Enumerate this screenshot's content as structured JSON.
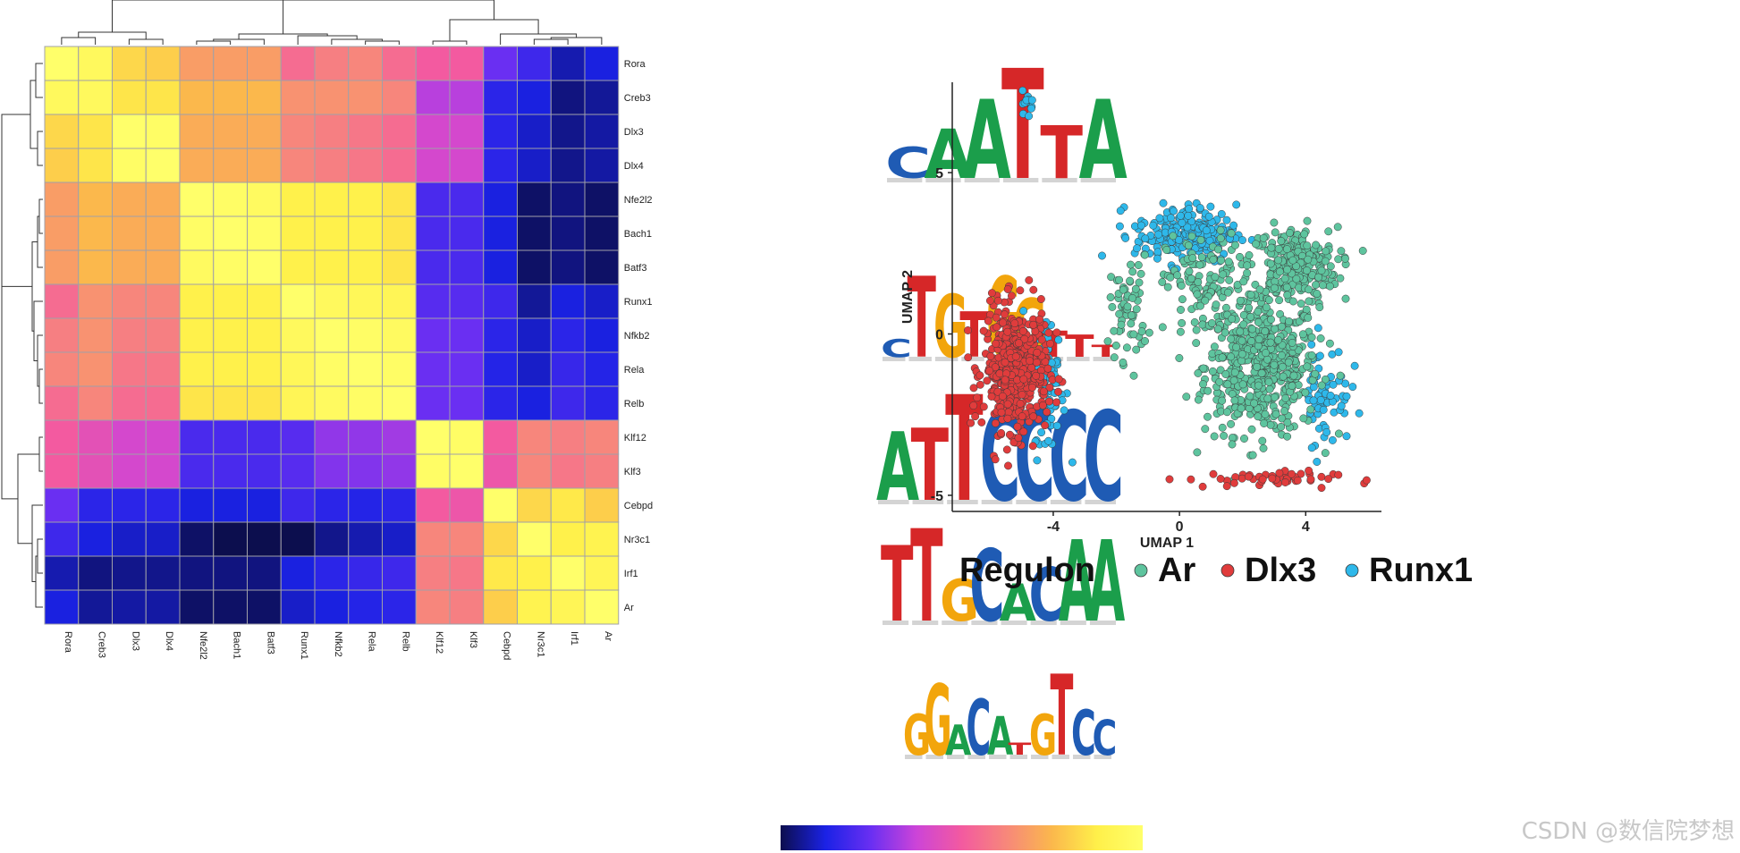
{
  "chart_data": [
    {
      "type": "heatmap",
      "title": "",
      "row_labels": [
        "Rora",
        "Creb3",
        "Dlx3",
        "Dlx4",
        "Nfe2l2",
        "Bach1",
        "Batf3",
        "Runx1",
        "Nfkb2",
        "Rela",
        "Relb",
        "Klf12",
        "Klf3",
        "Cebpd",
        "Nr3c1",
        "Irf1",
        "Ar"
      ],
      "col_labels": [
        "Rora",
        "Creb3",
        "Dlx3",
        "Dlx4",
        "Nfe2l2",
        "Bach1",
        "Batf3",
        "Runx1",
        "Nfkb2",
        "Rela",
        "Relb",
        "Klf12",
        "Klf3",
        "Cebpd",
        "Nr3c1",
        "Irf1",
        "Ar"
      ],
      "value_range": [
        0,
        1
      ],
      "values": [
        [
          1.0,
          0.95,
          0.82,
          0.8,
          0.68,
          0.68,
          0.68,
          0.55,
          0.6,
          0.62,
          0.55,
          0.5,
          0.5,
          0.25,
          0.18,
          0.08,
          0.12
        ],
        [
          0.95,
          0.95,
          0.85,
          0.85,
          0.75,
          0.75,
          0.75,
          0.65,
          0.65,
          0.65,
          0.62,
          0.35,
          0.35,
          0.15,
          0.12,
          0.04,
          0.06
        ],
        [
          0.82,
          0.85,
          1.0,
          0.98,
          0.72,
          0.72,
          0.72,
          0.62,
          0.6,
          0.58,
          0.55,
          0.4,
          0.4,
          0.15,
          0.1,
          0.05,
          0.07
        ],
        [
          0.8,
          0.85,
          0.98,
          1.0,
          0.72,
          0.72,
          0.72,
          0.62,
          0.6,
          0.58,
          0.55,
          0.4,
          0.4,
          0.15,
          0.1,
          0.05,
          0.07
        ],
        [
          0.68,
          0.75,
          0.72,
          0.72,
          1.0,
          0.98,
          0.96,
          0.88,
          0.88,
          0.88,
          0.85,
          0.2,
          0.2,
          0.12,
          0.02,
          0.04,
          0.02
        ],
        [
          0.68,
          0.75,
          0.72,
          0.72,
          0.98,
          1.0,
          0.98,
          0.88,
          0.88,
          0.88,
          0.85,
          0.2,
          0.2,
          0.12,
          0.02,
          0.04,
          0.02
        ],
        [
          0.68,
          0.75,
          0.72,
          0.72,
          0.96,
          0.98,
          1.0,
          0.88,
          0.88,
          0.88,
          0.85,
          0.2,
          0.2,
          0.12,
          0.02,
          0.04,
          0.02
        ],
        [
          0.55,
          0.65,
          0.62,
          0.62,
          0.88,
          0.88,
          0.88,
          1.0,
          0.95,
          0.93,
          0.92,
          0.22,
          0.22,
          0.18,
          0.06,
          0.12,
          0.1
        ],
        [
          0.6,
          0.65,
          0.6,
          0.6,
          0.88,
          0.88,
          0.88,
          0.95,
          1.0,
          0.98,
          0.96,
          0.25,
          0.25,
          0.15,
          0.1,
          0.15,
          0.12
        ],
        [
          0.62,
          0.65,
          0.58,
          0.58,
          0.88,
          0.88,
          0.88,
          0.93,
          0.98,
          1.0,
          0.98,
          0.25,
          0.25,
          0.14,
          0.1,
          0.17,
          0.14
        ],
        [
          0.55,
          0.62,
          0.55,
          0.55,
          0.85,
          0.85,
          0.85,
          0.92,
          0.96,
          0.98,
          1.0,
          0.25,
          0.25,
          0.15,
          0.12,
          0.18,
          0.15
        ],
        [
          0.5,
          0.45,
          0.4,
          0.4,
          0.2,
          0.2,
          0.2,
          0.22,
          0.3,
          0.3,
          0.32,
          1.0,
          0.98,
          0.5,
          0.62,
          0.6,
          0.62
        ],
        [
          0.5,
          0.45,
          0.4,
          0.4,
          0.2,
          0.2,
          0.2,
          0.22,
          0.28,
          0.28,
          0.3,
          0.98,
          1.0,
          0.48,
          0.62,
          0.58,
          0.6
        ],
        [
          0.25,
          0.15,
          0.15,
          0.15,
          0.12,
          0.12,
          0.12,
          0.18,
          0.15,
          0.14,
          0.15,
          0.5,
          0.48,
          1.0,
          0.82,
          0.86,
          0.8
        ],
        [
          0.18,
          0.12,
          0.1,
          0.1,
          0.02,
          0.0,
          0.0,
          0.0,
          0.05,
          0.08,
          0.1,
          0.62,
          0.62,
          0.82,
          1.0,
          0.88,
          0.9
        ],
        [
          0.08,
          0.04,
          0.05,
          0.05,
          0.04,
          0.04,
          0.04,
          0.12,
          0.15,
          0.17,
          0.18,
          0.6,
          0.58,
          0.86,
          0.88,
          1.0,
          0.92
        ],
        [
          0.12,
          0.06,
          0.07,
          0.07,
          0.02,
          0.02,
          0.02,
          0.1,
          0.12,
          0.14,
          0.15,
          0.62,
          0.6,
          0.8,
          0.9,
          0.92,
          1.0
        ]
      ],
      "colorbar_colors": [
        "#0c0e4e",
        "#1b22e6",
        "#6a2ff2",
        "#cc44d8",
        "#f35aa0",
        "#f7887a",
        "#fbb84c",
        "#fff04a",
        "#ffff6a"
      ]
    },
    {
      "type": "scatter",
      "title": "",
      "xlabel": "UMAP 1",
      "ylabel": "UMAP 2",
      "xlim": [
        -7.2,
        6.4
      ],
      "ylim": [
        -5.5,
        7.8
      ],
      "xticks": [
        -4,
        0,
        4
      ],
      "yticks": [
        -5,
        0,
        5
      ],
      "series": [
        {
          "name": "Ar",
          "color": "#5ec49e",
          "clusters": [
            {
              "center": [
                2.6,
                -1.0
              ],
              "spread": [
                1.8,
                2.1
              ],
              "n": 520
            },
            {
              "center": [
                3.6,
                2.1
              ],
              "spread": [
                1.4,
                1.2
              ],
              "n": 260
            },
            {
              "center": [
                0.8,
                1.5
              ],
              "spread": [
                1.2,
                1.6
              ],
              "n": 120
            },
            {
              "center": [
                -1.6,
                0.8
              ],
              "spread": [
                0.6,
                1.6
              ],
              "n": 60
            }
          ]
        },
        {
          "name": "Dlx3",
          "color": "#e03c3c",
          "clusters": [
            {
              "center": [
                -5.2,
                -1.1
              ],
              "spread": [
                1.0,
                1.9
              ],
              "n": 520
            },
            {
              "center": [
                2.5,
                -4.5
              ],
              "spread": [
                2.4,
                0.25
              ],
              "n": 50
            }
          ]
        },
        {
          "name": "Runx1",
          "color": "#2eb8ea",
          "clusters": [
            {
              "center": [
                0.2,
                3.1
              ],
              "spread": [
                1.6,
                0.9
              ],
              "n": 220
            },
            {
              "center": [
                -4.8,
                7.2
              ],
              "spread": [
                0.18,
                0.35
              ],
              "n": 14
            },
            {
              "center": [
                -4.1,
                -1.6
              ],
              "spread": [
                0.5,
                2.2
              ],
              "n": 70
            },
            {
              "center": [
                4.6,
                -1.8
              ],
              "spread": [
                0.8,
                1.6
              ],
              "n": 70
            }
          ]
        }
      ]
    }
  ],
  "motifs": [
    {
      "name": "motif-1",
      "letters": "CAATTA"
    },
    {
      "name": "motif-2",
      "letters": "CTGTGGTTT"
    },
    {
      "name": "motif-3",
      "letters": "ATTCCCC"
    },
    {
      "name": "motif-4",
      "letters": "TTGCACAA"
    },
    {
      "name": "motif-5",
      "letters": "GGACATGTCC"
    }
  ],
  "legend": {
    "title": "Regulon",
    "items": [
      {
        "label": "Ar",
        "color": "#5ec49e"
      },
      {
        "label": "Dlx3",
        "color": "#e03c3c"
      },
      {
        "label": "Runx1",
        "color": "#2eb8ea"
      }
    ]
  },
  "watermark": "CSDN @数信院梦想"
}
